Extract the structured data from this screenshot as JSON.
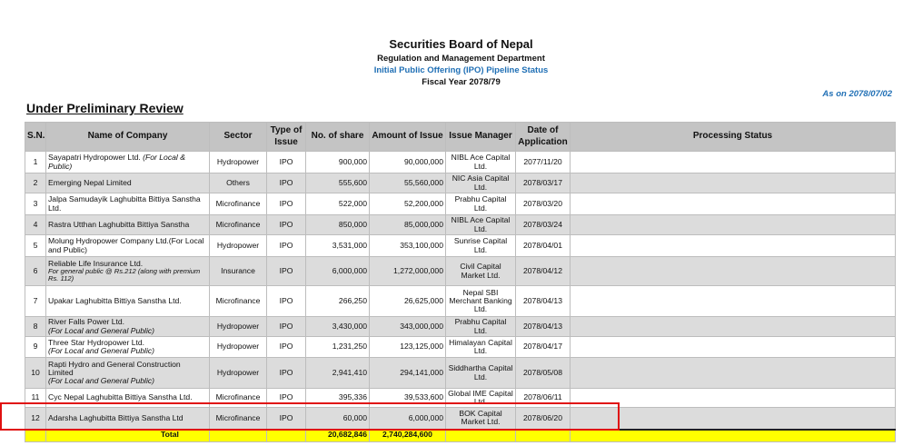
{
  "header": {
    "title": "Securities Board of Nepal",
    "department": "Regulation and Management Department",
    "subtitle": "Initial Public Offering (IPO) Pipeline Status",
    "fiscal_year": "Fiscal Year 2078/79",
    "as_on": "As on 2078/07/02",
    "section": "Under Preliminary Review"
  },
  "table": {
    "headers": [
      "S.N.",
      "Name of Company",
      "Sector",
      "Type of Issue",
      "No. of share",
      "Amount of Issue",
      "Issue Manager",
      "Date of Application",
      "Processing Status"
    ],
    "rows": [
      {
        "sn": "1",
        "company": "Sayapatri Hydropower Ltd.",
        "note": "(For Local & Public)",
        "sector": "Hydropower",
        "type": "IPO",
        "shares": "900,000",
        "amount": "90,000,000",
        "manager": "NIBL Ace Capital Ltd.",
        "date": "2077/11/20"
      },
      {
        "sn": "2",
        "company": "Emerging Nepal Limited",
        "sector": "Others",
        "type": "IPO",
        "shares": "555,600",
        "amount": "55,560,000",
        "manager": "NIC Asia Capital Ltd.",
        "date": "2078/03/17"
      },
      {
        "sn": "3",
        "company": "Jalpa Samudayik Laghubitta Bittiya Sanstha Ltd.",
        "sector": "Microfinance",
        "type": "IPO",
        "shares": "522,000",
        "amount": "52,200,000",
        "manager": "Prabhu Capital Ltd.",
        "date": "2078/03/20"
      },
      {
        "sn": "4",
        "company": "Rastra Utthan Laghubitta Bittiya Sanstha",
        "sector": "Microfinance",
        "type": "IPO",
        "shares": "850,000",
        "amount": "85,000,000",
        "manager": "NIBL Ace Capital Ltd.",
        "date": "2078/03/24"
      },
      {
        "sn": "5",
        "company": "Molung Hydropower Company Ltd.(For Local and Public)",
        "sector": "Hydropower",
        "type": "IPO",
        "shares": "3,531,000",
        "amount": "353,100,000",
        "manager": "Sunrise Capital Ltd.",
        "date": "2078/04/01"
      },
      {
        "sn": "6",
        "company": "Reliable Life Insurance Ltd.",
        "note": "For general public @ Rs.212 (along with premium Rs. 112)",
        "sector": "Insurance",
        "type": "IPO",
        "shares": "6,000,000",
        "amount": "1,272,000,000",
        "manager": "Civil Capital Market Ltd.",
        "date": "2078/04/12"
      },
      {
        "sn": "7",
        "company": "Upakar Laghubitta Bittiya Sanstha Ltd.",
        "sector": "Microfinance",
        "type": "IPO",
        "shares": "266,250",
        "amount": "26,625,000",
        "manager": "Nepal SBI Merchant Banking Ltd.",
        "date": "2078/04/13"
      },
      {
        "sn": "8",
        "company": "River Falls Power Ltd.",
        "note": "(For Local and General Public)",
        "sector": "Hydropower",
        "type": "IPO",
        "shares": "3,430,000",
        "amount": "343,000,000",
        "manager": "Prabhu Capital Ltd.",
        "date": "2078/04/13"
      },
      {
        "sn": "9",
        "company": "Three Star Hydropower Ltd.",
        "note": "(For Local and General Public)",
        "sector": "Hydropower",
        "type": "IPO",
        "shares": "1,231,250",
        "amount": "123,125,000",
        "manager": "Himalayan Capital Ltd.",
        "date": "2078/04/17"
      },
      {
        "sn": "10",
        "company": "Rapti Hydro and General Construction Limited",
        "note": "(For Local and General Public)",
        "sector": "Hydropower",
        "type": "IPO",
        "shares": "2,941,410",
        "amount": "294,141,000",
        "manager": "Siddhartha Capital Ltd.",
        "date": "2078/05/08"
      },
      {
        "sn": "11",
        "company": "Cyc Nepal Laghubitta Bittiya Sanstha Ltd.",
        "sector": "Microfinance",
        "type": "IPO",
        "shares": "395,336",
        "amount": "39,533,600",
        "manager": "Global IME Capital Ltd.",
        "date": "2078/06/11"
      },
      {
        "sn": "12",
        "company": "Adarsha Laghubitta Bittiya Sanstha Ltd",
        "sector": "Microfinance",
        "type": "IPO",
        "shares": "60,000",
        "amount": "6,000,000",
        "manager": "BOK Capital Market Ltd.",
        "date": "2078/06/20"
      }
    ],
    "total": {
      "label": "Total",
      "shares": "20,682,846",
      "amount": "2,740,284,600"
    }
  }
}
